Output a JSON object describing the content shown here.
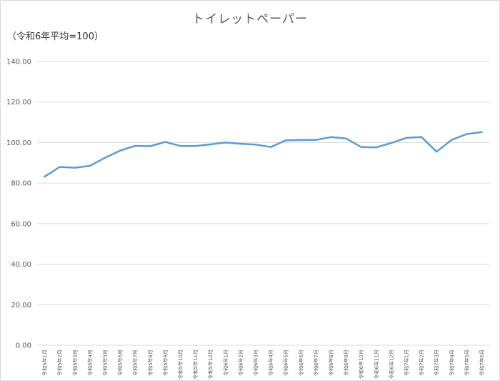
{
  "chart_data": {
    "type": "line",
    "title": "トイレットペーパー",
    "unit_note": "（令和6年平均=100）",
    "ylim": [
      0,
      140
    ],
    "yticks": [
      "0.00",
      "20.00",
      "40.00",
      "60.00",
      "80.00",
      "100.00",
      "120.00",
      "140.00"
    ],
    "grid": true,
    "line_color": "#5b9bd5",
    "categories": [
      "令和5年1月",
      "令和5年2月",
      "令和5年3月",
      "令和5年4月",
      "令和5年5月",
      "令和5年6月",
      "令和5年7月",
      "令和5年8月",
      "令和5年9月",
      "令和5年10月",
      "令和5年11月",
      "令和5年12月",
      "令和6年1月",
      "令和6年2月",
      "令和6年3月",
      "令和6年4月",
      "令和6年5月",
      "令和6年6月",
      "令和6年7月",
      "令和6年8月",
      "令和6年9月",
      "令和6年10月",
      "令和6年11月",
      "令和6年12月",
      "令和7年1月",
      "令和7年2月",
      "令和7年3月",
      "令和7年4月",
      "令和7年5月",
      "令和7年6月"
    ],
    "series": [
      {
        "values": [
          83.2,
          88.0,
          87.6,
          88.5,
          92.5,
          96.0,
          98.4,
          98.2,
          100.3,
          98.3,
          98.3,
          99.1,
          100.0,
          99.4,
          99.0,
          97.8,
          101.1,
          101.3,
          101.3,
          102.7,
          102.0,
          97.8,
          97.6,
          99.8,
          102.3,
          102.7,
          95.5,
          101.3,
          104.2,
          105.2
        ]
      }
    ]
  }
}
